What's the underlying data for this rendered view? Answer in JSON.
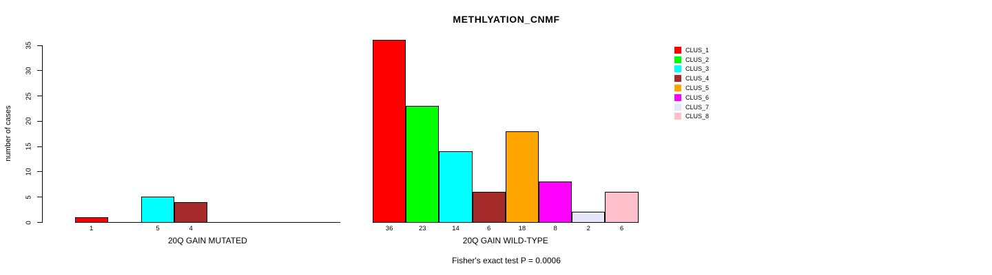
{
  "window": {
    "background": "#ffffff"
  },
  "chart_data": {
    "type": "bar",
    "title": "METHLYATION_CNMF",
    "ylabel": "number of cases",
    "footnote": "Fisher's exact test P = 0.0006",
    "ylim": [
      0,
      35
    ],
    "yticks": [
      0,
      5,
      10,
      15,
      20,
      25,
      30,
      35
    ],
    "grid": false,
    "legend_position": "right",
    "bar_border_color": "#000000",
    "clusters": [
      {
        "name": "CLUS_1",
        "color": "#ff0000"
      },
      {
        "name": "CLUS_2",
        "color": "#00ff00"
      },
      {
        "name": "CLUS_3",
        "color": "#00ffff"
      },
      {
        "name": "CLUS_4",
        "color": "#a52a2a"
      },
      {
        "name": "CLUS_5",
        "color": "#ffa500"
      },
      {
        "name": "CLUS_6",
        "color": "#ff00ff"
      },
      {
        "name": "CLUS_7",
        "color": "#e6e6fa"
      },
      {
        "name": "CLUS_8",
        "color": "#ffc0cb"
      }
    ],
    "groups": [
      {
        "label": "20Q GAIN MUTATED",
        "values": [
          1,
          0,
          5,
          4,
          0,
          0,
          0,
          0
        ],
        "bar_labels": [
          "1",
          "",
          "5",
          "4",
          "",
          "",
          "",
          ""
        ]
      },
      {
        "label": "20Q GAIN WILD-TYPE",
        "values": [
          36,
          23,
          14,
          6,
          18,
          8,
          2,
          6
        ],
        "bar_labels": [
          "36",
          "23",
          "14",
          "6",
          "18",
          "8",
          "2",
          "6"
        ]
      }
    ]
  }
}
